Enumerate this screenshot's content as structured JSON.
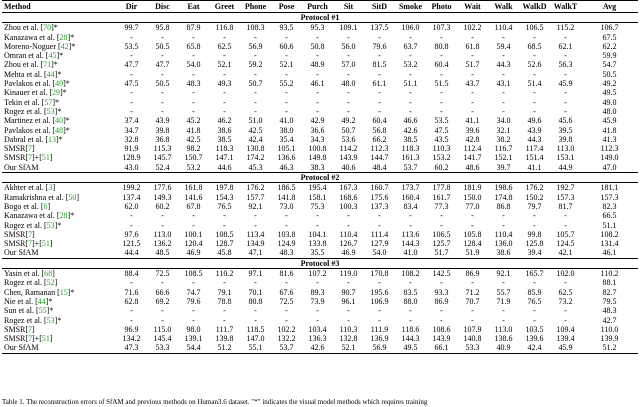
{
  "columns": [
    "Method",
    "Dir",
    "Disc",
    "Eat",
    "Greet",
    "Phone",
    "Pose",
    "Purch",
    "Sit",
    "SitD",
    "Smoke",
    "Photo",
    "Wait",
    "Walk",
    "WalkD",
    "WalkT",
    "Avg"
  ],
  "protocols": [
    {
      "title": "Protocol #1",
      "rows": [
        {
          "name": "Zhou et al. [",
          "cite": "70",
          "suffix": "]*",
          "values": [
            "99.7",
            "95.8",
            "87.9",
            "116.8",
            "108.3",
            "93.5",
            "95.3",
            "109.1",
            "137.5",
            "106.0",
            "107.3",
            "102.2",
            "110.4",
            "106.5",
            "115.2",
            "106.7"
          ]
        },
        {
          "name": "Kanazawa et al. [",
          "cite": "28",
          "suffix": "]*",
          "values": [
            "-",
            "-",
            "-",
            "-",
            "-",
            "-",
            "-",
            "-",
            "-",
            "-",
            "-",
            "-",
            "-",
            "-",
            "-",
            "67.5"
          ]
        },
        {
          "name": "Moreno-Noguer [",
          "cite": "42",
          "suffix": "]*",
          "values": [
            "53.5",
            "50.5",
            "65.8",
            "62.5",
            "56.9",
            "60.6",
            "50.8",
            "56.0",
            "79.6",
            "63.7",
            "80.8",
            "61.8",
            "59.4",
            "68.5",
            "62.1",
            "62.2"
          ]
        },
        {
          "name": "Omran et al. [",
          "cite": "45",
          "suffix": "]*",
          "values": [
            "-",
            "-",
            "-",
            "-",
            "-",
            "-",
            "-",
            "-",
            "-",
            "-",
            "-",
            "-",
            "-",
            "-",
            "-",
            "59.9"
          ]
        },
        {
          "name": "Zhou et al. [",
          "cite": "71",
          "suffix": "]*",
          "values": [
            "47.7",
            "47.7",
            "54.0",
            "52.1",
            "59.2",
            "52.1",
            "48.9",
            "57.0",
            "81.5",
            "53.2",
            "60.4",
            "51.7",
            "44.3",
            "52.6",
            "56.3",
            "54.7"
          ]
        },
        {
          "name": "Mehta et al. [",
          "cite": "44",
          "suffix": "]*",
          "values": [
            "-",
            "-",
            "-",
            "-",
            "-",
            "-",
            "-",
            "-",
            "-",
            "-",
            "-",
            "-",
            "-",
            "-",
            "-",
            "50.5"
          ]
        },
        {
          "name": "Pavlakos et al. [",
          "cite": "49",
          "suffix": "]*",
          "values": [
            "47.5",
            "50.5",
            "48.3",
            "49.3",
            "50.7",
            "55.2",
            "46.1",
            "48.0",
            "61.1",
            "51.1",
            "51.5",
            "43.7",
            "43.1",
            "51.4",
            "45.9",
            "49.2"
          ]
        },
        {
          "name": "Kinauer et al. [",
          "cite": "29",
          "suffix": "]*",
          "values": [
            "-",
            "-",
            "-",
            "-",
            "-",
            "-",
            "-",
            "-",
            "-",
            "-",
            "-",
            "-",
            "-",
            "-",
            "-",
            "49.5"
          ]
        },
        {
          "name": "Tekin et al. [",
          "cite": "57",
          "suffix": "]*",
          "values": [
            "-",
            "-",
            "-",
            "-",
            "-",
            "-",
            "-",
            "-",
            "-",
            "-",
            "-",
            "-",
            "-",
            "-",
            "-",
            "49.0"
          ]
        },
        {
          "name": "Rogez et al. [",
          "cite": "53",
          "suffix": "]*",
          "values": [
            "-",
            "-",
            "-",
            "-",
            "-",
            "-",
            "-",
            "-",
            "-",
            "-",
            "-",
            "-",
            "-",
            "-",
            "-",
            "48.0"
          ]
        },
        {
          "name": "Martinez et al. [",
          "cite": "40",
          "suffix": "]*",
          "values": [
            "37.4",
            "43.9",
            "45.2",
            "46.2",
            "51.0",
            "41.0",
            "42.9",
            "49.2",
            "60.4",
            "46.6",
            "53.5",
            "41.1",
            "34.0",
            "49.6",
            "45.6",
            "45.9"
          ]
        },
        {
          "name": "Pavlakos et al. [",
          "cite": "48",
          "suffix": "]*",
          "values": [
            "34.7",
            "39.8",
            "41.8",
            "38.6",
            "42.5",
            "38.0",
            "36.6",
            "50.7",
            "56.8",
            "42.6",
            "47.5",
            "39.6",
            "32.1",
            "43.9",
            "39.5",
            "41.8"
          ]
        },
        {
          "name": "Dabral et al. [",
          "cite": "13",
          "suffix": "]*",
          "values": [
            "32.8",
            "36.8",
            "42.5",
            "38.5",
            "42.4",
            "35.4",
            "34.3",
            "53.6",
            "66.2",
            "38.5",
            "43.5",
            "42.8",
            "38.2",
            "44.3",
            "39.8",
            "41.3"
          ]
        },
        {
          "name": "SMSR[",
          "cite": "7",
          "suffix": "]",
          "values": [
            "91.9",
            "115.3",
            "98.2",
            "118.3",
            "130.8",
            "105.1",
            "100.8",
            "114.2",
            "112.3",
            "118.3",
            "110.3",
            "112.4",
            "116.7",
            "117.4",
            "113.0",
            "112.3"
          ]
        },
        {
          "name": "SMSR[",
          "cite": "7",
          "suffix": "]+[",
          "cite2": "51",
          "suffix2": "]",
          "values": [
            "128.9",
            "145.7",
            "150.7",
            "147.1",
            "174.2",
            "136.6",
            "149.8",
            "143.9",
            "144.7",
            "161.3",
            "153.2",
            "141.7",
            "152.1",
            "151.4",
            "153.1",
            "149.0"
          ]
        },
        {
          "name": "Our SfAM",
          "values": [
            "43.0",
            "52.4",
            "53.2",
            "44.6",
            "45.3",
            "46.3",
            "38.3",
            "40.6",
            "48.4",
            "53.7",
            "60.2",
            "48.6",
            "39.7",
            "41.1",
            "44.9",
            "47.0"
          ]
        }
      ]
    },
    {
      "title": "Protocol #2",
      "rows": [
        {
          "name": "Akhter et al. [",
          "cite": "3",
          "suffix": "]",
          "values": [
            "199.2",
            "177.6",
            "161.8",
            "197.8",
            "176.2",
            "186.5",
            "195.4",
            "167.3",
            "160.7",
            "173.7",
            "177.8",
            "181.9",
            "198.6",
            "176.2",
            "192.7",
            "181.1"
          ]
        },
        {
          "name": "Ramakrishna et al. [",
          "cite": "50",
          "suffix": "]",
          "values": [
            "137.4",
            "149.3",
            "141.6",
            "154.3",
            "157.7",
            "141.8",
            "158.1",
            "168.6",
            "175.6",
            "160.4",
            "161.7",
            "150.0",
            "174.8",
            "150.2",
            "157.3",
            "157.3"
          ]
        },
        {
          "name": "Bogo et al. [",
          "cite": "6",
          "suffix": "]",
          "values": [
            "62.0",
            "60.2",
            "67.8",
            "76.5",
            "92.1",
            "73.0",
            "75.3",
            "100.3",
            "137.3",
            "83.4",
            "77.3",
            "77.0",
            "86.8",
            "79.7",
            "81.7",
            "82.3"
          ]
        },
        {
          "name": "Kanazawa et al. [",
          "cite": "28",
          "suffix": "]*",
          "values": [
            "-",
            "-",
            "-",
            "-",
            "-",
            "-",
            "-",
            "-",
            "-",
            "-",
            "-",
            "-",
            "-",
            "-",
            "-",
            "66.5"
          ]
        },
        {
          "name": "Rogez et al. [",
          "cite": "53",
          "suffix": "]*",
          "values": [
            "-",
            "-",
            "-",
            "-",
            "-",
            "-",
            "-",
            "-",
            "-",
            "-",
            "-",
            "-",
            "-",
            "-",
            "-",
            "51.1"
          ]
        },
        {
          "name": "SMSR[",
          "cite": "7",
          "suffix": "]",
          "values": [
            "97.6",
            "113.0",
            "100.1",
            "108.5",
            "113.4",
            "103.8",
            "104.1",
            "110.4",
            "111.4",
            "113.6",
            "106.5",
            "105.8",
            "110.4",
            "99.8",
            "105.7",
            "108.2"
          ]
        },
        {
          "name": "SMSR[",
          "cite": "7",
          "suffix": "]+[",
          "cite2": "51",
          "suffix2": "]",
          "values": [
            "121.5",
            "136.2",
            "120.4",
            "128.7",
            "134.9",
            "124.9",
            "133.8",
            "126.7",
            "127.9",
            "144.3",
            "125.7",
            "128.4",
            "136.0",
            "125.8",
            "124.5",
            "131.4"
          ]
        },
        {
          "name": "Our SfAM",
          "values": [
            "44.4",
            "48.5",
            "46.9",
            "45.8",
            "47.1",
            "48.3",
            "35.5",
            "46.9",
            "54.0",
            "41.0",
            "51.7",
            "51.9",
            "38.6",
            "39.4",
            "42.1",
            "46.1"
          ]
        }
      ]
    },
    {
      "title": "Protocol #3",
      "rows": [
        {
          "name": "Yasin et al. [",
          "cite": "68",
          "suffix": "]",
          "values": [
            "88.4",
            "72.5",
            "108.5",
            "110.2",
            "97.1",
            "81.6",
            "107.2",
            "119.0",
            "170.8",
            "108.2",
            "142.5",
            "86.9",
            "92.1",
            "165.7",
            "102.0",
            "110.2"
          ]
        },
        {
          "name": "Rogez et al. [",
          "cite": "52",
          "suffix": "]",
          "values": [
            "-",
            "-",
            "-",
            "-",
            "-",
            "-",
            "-",
            "-",
            "-",
            "-",
            "-",
            "-",
            "-",
            "-",
            "-",
            "88.1"
          ]
        },
        {
          "name": "Chen, Ramanan [",
          "cite": "15",
          "suffix": "]*",
          "values": [
            "71.6",
            "66.6",
            "74.7",
            "79.1",
            "70.1",
            "67.6",
            "89.3",
            "90.7",
            "195.6",
            "83.5",
            "93.3",
            "71.2",
            "55.7",
            "85.9",
            "62.5",
            "82.7"
          ]
        },
        {
          "name": "Nie et al. [",
          "cite": "44",
          "suffix": "]*",
          "values": [
            "62.8",
            "69.2",
            "79.6",
            "78.8",
            "80.8",
            "72.5",
            "73.9",
            "96.1",
            "106.9",
            "88.0",
            "86.9",
            "70.7",
            "71.9",
            "76.5",
            "73.2",
            "79.5"
          ]
        },
        {
          "name": "Sun et al. [",
          "cite": "55",
          "suffix": "]*",
          "values": [
            "-",
            "-",
            "-",
            "-",
            "-",
            "-",
            "-",
            "-",
            "-",
            "-",
            "-",
            "-",
            "-",
            "-",
            "-",
            "48.3"
          ]
        },
        {
          "name": "Rogez et al. [",
          "cite": "53",
          "suffix": "]*",
          "values": [
            "-",
            "-",
            "-",
            "-",
            "-",
            "-",
            "-",
            "-",
            "-",
            "-",
            "-",
            "-",
            "-",
            "-",
            "-",
            "42.7"
          ]
        },
        {
          "name": "SMSR[",
          "cite": "7",
          "suffix": "]",
          "values": [
            "96.9",
            "115.0",
            "98.0",
            "111.7",
            "118.5",
            "102.2",
            "103.4",
            "110.3",
            "111.9",
            "118.6",
            "108.6",
            "107.9",
            "113.0",
            "103.5",
            "109.4",
            "110.0"
          ]
        },
        {
          "name": "SMSR[",
          "cite": "7",
          "suffix": "]+[",
          "cite2": "51",
          "suffix2": "]",
          "values": [
            "134.2",
            "145.4",
            "139.1",
            "139.8",
            "147.0",
            "132.2",
            "136.3",
            "132.8",
            "136.9",
            "144.3",
            "143.9",
            "140.8",
            "138.6",
            "139.6",
            "139.4",
            "139.9"
          ]
        },
        {
          "name": "Our SfAM",
          "values": [
            "47.3",
            "53.3",
            "54.4",
            "51.2",
            "55.1",
            "53.7",
            "42.6",
            "52.1",
            "56.9",
            "49.5",
            "66.1",
            "53.3",
            "40.9",
            "42.4",
            "45.9",
            "51.2"
          ]
        }
      ]
    }
  ],
  "caption": "Table 1. The reconstruction errors of SfAM and previous methods on Human3.6 dataset. \"*\" indicates the visual model methods which requires training"
}
